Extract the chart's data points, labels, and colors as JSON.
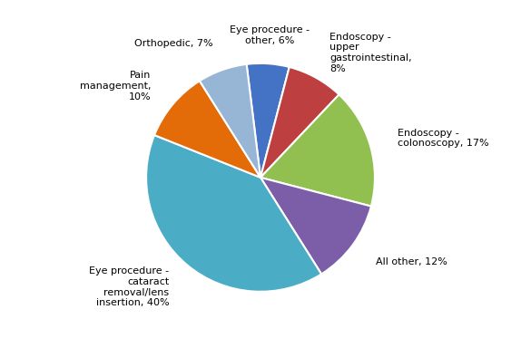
{
  "slices": [
    {
      "label": "Eye procedure -\nother, 6%",
      "value": 6,
      "color": "#4472c4"
    },
    {
      "label": "Endoscopy -\nupper\ngastrointestinal,\n8%",
      "value": 8,
      "color": "#be3f3f"
    },
    {
      "label": "Endoscopy -\ncolonoscopy, 17%",
      "value": 17,
      "color": "#92c050"
    },
    {
      "label": "All other, 12%",
      "value": 12,
      "color": "#7b5ea7"
    },
    {
      "label": "Eye procedure -\ncataract\nremoval/lens\ninsertion, 40%",
      "value": 40,
      "color": "#4bacc6"
    },
    {
      "label": "Pain\nmanagement,\n10%",
      "value": 10,
      "color": "#e36c09"
    },
    {
      "label": "Orthopedic, 7%",
      "value": 7,
      "color": "#97b5d4"
    }
  ],
  "startangle": 97,
  "figsize": [
    5.74,
    3.84
  ],
  "dpi": 100,
  "label_fontsize": 8,
  "edge_color": "white",
  "edge_linewidth": 1.5
}
